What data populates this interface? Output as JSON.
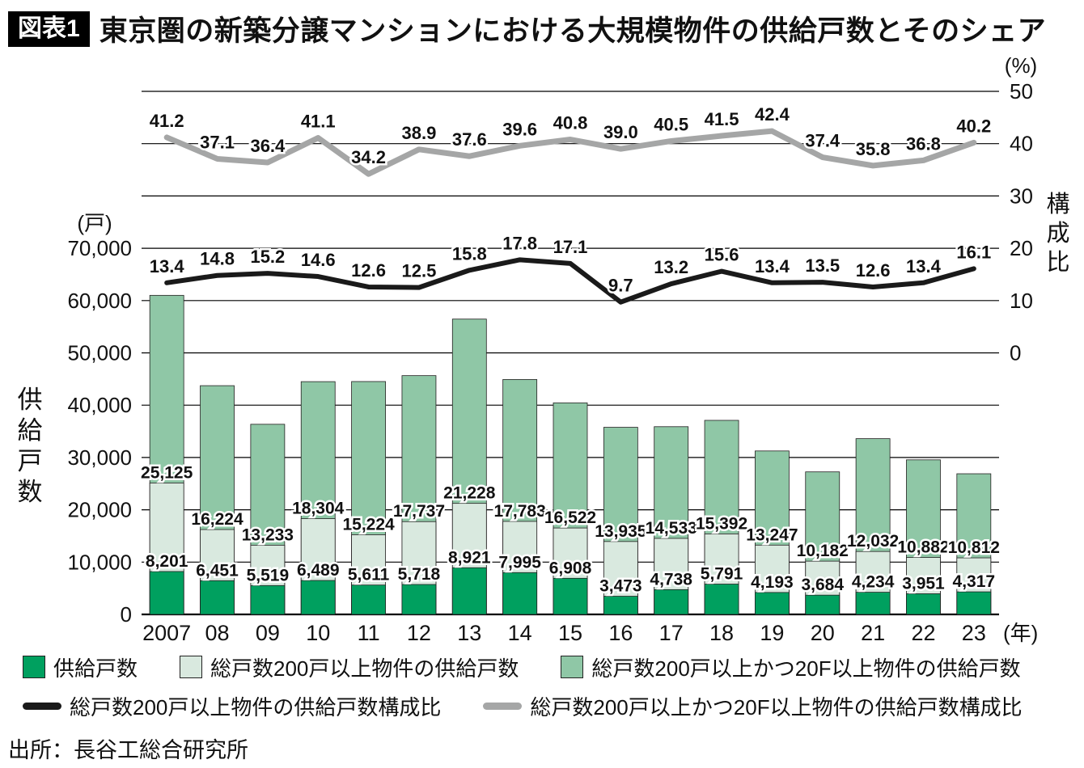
{
  "header": {
    "badge": "図表1",
    "title": "東京圏の新築分譲マンションにおける大規模物件の供給戸数とそのシェア"
  },
  "source": "出所：長谷工総合研究所",
  "chart_data": {
    "type": "bar",
    "subtype": "stacked-bars-with-two-percentage-lines",
    "grid": true,
    "legend_position": "bottom",
    "categories": [
      "2007",
      "08",
      "09",
      "10",
      "11",
      "12",
      "13",
      "14",
      "15",
      "16",
      "17",
      "18",
      "19",
      "20",
      "21",
      "22",
      "23"
    ],
    "x_axis_unit": "(年)",
    "left_axis": {
      "unit": "(戸)",
      "title": "供給戸数",
      "min": 0,
      "max": 70000,
      "ticks": [
        "70,000",
        "60,000",
        "50,000",
        "40,000",
        "30,000",
        "20,000",
        "10,000",
        "0"
      ]
    },
    "right_axis": {
      "unit": "(%)",
      "title": "構成比",
      "min": 0,
      "max": 50,
      "ticks": [
        "50",
        "40",
        "30",
        "20",
        "10",
        "0"
      ]
    },
    "bar_series": [
      {
        "name": "供給戸数",
        "color": "#00a05f",
        "values": [
          8201,
          6451,
          5519,
          6489,
          5611,
          5718,
          8921,
          7995,
          6908,
          3473,
          4738,
          5791,
          4193,
          3684,
          4234,
          3951,
          4317
        ]
      },
      {
        "name": "総戸数200戸以上物件の供給戸数",
        "color": "#d9e9df",
        "values": [
          25125,
          16224,
          13233,
          18304,
          15224,
          17737,
          21228,
          17783,
          16522,
          13935,
          14533,
          15392,
          13247,
          10182,
          12032,
          10882,
          10812
        ]
      },
      {
        "name": "総戸数200戸以上かつ20F以上物件の供給戸数",
        "color": "#8fc7a6",
        "note": "bar top = total supply units, values estimated from gridlines (see bar_totals_estimated)"
      }
    ],
    "bar_totals_estimated": [
      61000,
      43730,
      36350,
      44500,
      44520,
      45650,
      56460,
      44910,
      40450,
      35770,
      35890,
      37100,
      31250,
      27250,
      33600,
      29550,
      26890
    ],
    "line_series": [
      {
        "name": "総戸数200戸以上物件の供給戸数構成比",
        "color": "#1a1a1a",
        "values": [
          13.4,
          14.8,
          15.2,
          14.6,
          12.6,
          12.5,
          15.8,
          17.8,
          17.1,
          9.7,
          13.2,
          15.6,
          13.4,
          13.5,
          12.6,
          13.4,
          16.1
        ]
      },
      {
        "name": "総戸数200戸以上かつ20F以上物件の供給戸数構成比",
        "color": "#a5a6a6",
        "values": [
          41.2,
          37.1,
          36.4,
          41.1,
          34.2,
          38.9,
          37.6,
          39.6,
          40.8,
          39.0,
          40.5,
          41.5,
          42.4,
          37.4,
          35.8,
          36.8,
          40.2
        ]
      }
    ]
  }
}
